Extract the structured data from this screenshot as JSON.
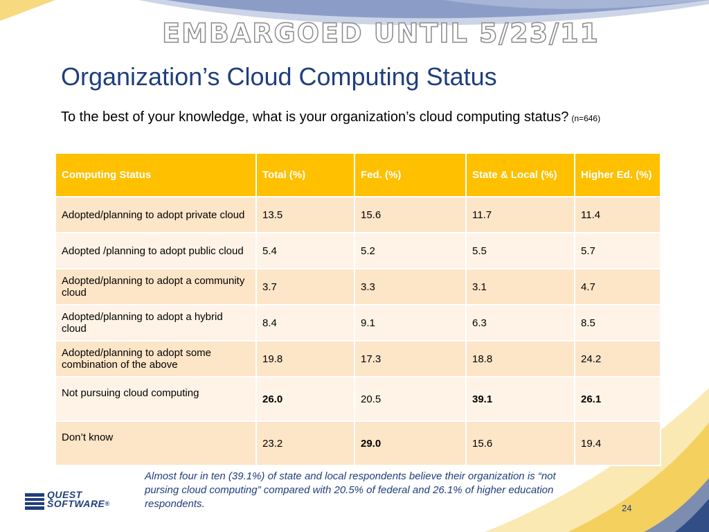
{
  "embargo": "EMBARGOED UNTIL  5/23/11",
  "title": "Organization’s Cloud Computing Status",
  "subtitle": {
    "question": "To the best of your knowledge, what is your organization’s cloud computing status?",
    "n": "(n=646)"
  },
  "table": {
    "headers": [
      "Computing Status",
      "Total (%)",
      "Fed. (%)",
      "State & Local (%)",
      "Higher Ed. (%)"
    ],
    "rows": [
      {
        "label": "Adopted/planning to adopt private cloud",
        "total": "13.5",
        "fed": "15.6",
        "state": "11.7",
        "higher": "11.4"
      },
      {
        "label": "Adopted /planning to adopt public cloud",
        "total": "5.4",
        "fed": "5.2",
        "state": "5.5",
        "higher": "5.7"
      },
      {
        "label": "Adopted/planning to adopt a community cloud",
        "total": "3.7",
        "fed": "3.3",
        "state": "3.1",
        "higher": "4.7"
      },
      {
        "label": "Adopted/planning to adopt a hybrid cloud",
        "total": "8.4",
        "fed": "9.1",
        "state": "6.3",
        "higher": "8.5"
      },
      {
        "label": "Adopted/planning to adopt some combination of the above",
        "total": "19.8",
        "fed": "17.3",
        "state": "18.8",
        "higher": "24.2"
      },
      {
        "label": "Not pursuing cloud computing",
        "total": "26.0",
        "fed": "20.5",
        "state": "39.1",
        "higher": "26.1"
      },
      {
        "label": "Don’t know",
        "total": "23.2",
        "fed": "29.0",
        "state": "15.6",
        "higher": "19.4"
      }
    ],
    "bold_cells": [
      "5.total",
      "5.state",
      "5.higher",
      "6.fed"
    ]
  },
  "logo": {
    "line1": "QUEST",
    "line2": "SOFTWARE",
    "mark": "®"
  },
  "caption": "Almost four in ten (39.1%) of state and local respondents believe their organization is “not pursing cloud computing” compared with 20.5% of federal and 26.1% of higher education respondents.",
  "page_number": "24",
  "colors": {
    "header": "#ffc000",
    "row_odd": "#fde5c8",
    "row_even": "#fef3e6",
    "title": "#1e3e7d",
    "swoosh_blue": "#6f85b8",
    "swoosh_gold": "#f3c94a"
  }
}
